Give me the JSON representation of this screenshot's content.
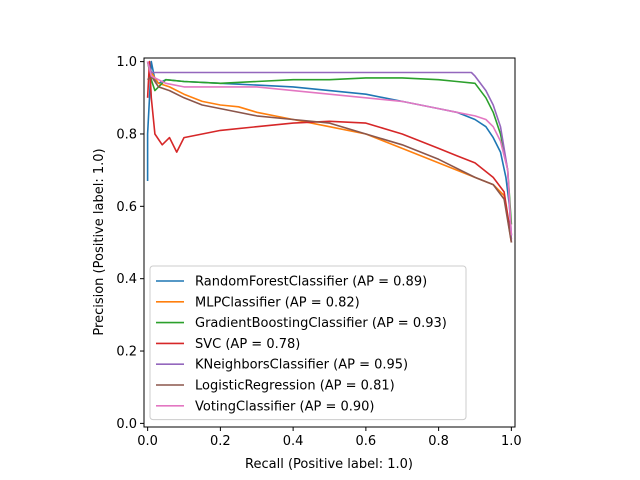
{
  "chart_data": {
    "type": "line",
    "title": "",
    "xlabel": "Recall (Positive label: 1.0)",
    "ylabel": "Precision (Positive label: 1.0)",
    "xlim": [
      -0.01,
      1.01
    ],
    "ylim": [
      -0.01,
      1.01
    ],
    "xticks": [
      "0.0",
      "0.2",
      "0.4",
      "0.6",
      "0.8",
      "1.0"
    ],
    "yticks": [
      "0.0",
      "0.2",
      "0.4",
      "0.6",
      "0.8",
      "1.0"
    ],
    "grid": false,
    "legend_position": "lower-left",
    "series": [
      {
        "name": "RandomForestClassifier (AP = 0.89)",
        "color": "#1f77b4",
        "points": [
          [
            0.0,
            0.67
          ],
          [
            0.0,
            0.8
          ],
          [
            0.005,
            0.9
          ],
          [
            0.01,
            1.0
          ],
          [
            0.02,
            0.95
          ],
          [
            0.03,
            0.94
          ],
          [
            0.05,
            0.95
          ],
          [
            0.1,
            0.945
          ],
          [
            0.2,
            0.94
          ],
          [
            0.3,
            0.935
          ],
          [
            0.4,
            0.93
          ],
          [
            0.5,
            0.92
          ],
          [
            0.6,
            0.91
          ],
          [
            0.7,
            0.89
          ],
          [
            0.8,
            0.87
          ],
          [
            0.85,
            0.86
          ],
          [
            0.9,
            0.84
          ],
          [
            0.93,
            0.82
          ],
          [
            0.95,
            0.79
          ],
          [
            0.97,
            0.75
          ],
          [
            0.985,
            0.68
          ],
          [
            0.995,
            0.6
          ],
          [
            1.0,
            0.52
          ]
        ]
      },
      {
        "name": "MLPClassifier (AP = 0.82)",
        "color": "#ff7f0e",
        "points": [
          [
            0.0,
            1.0
          ],
          [
            0.01,
            0.97
          ],
          [
            0.03,
            0.94
          ],
          [
            0.06,
            0.93
          ],
          [
            0.1,
            0.91
          ],
          [
            0.15,
            0.89
          ],
          [
            0.2,
            0.88
          ],
          [
            0.25,
            0.875
          ],
          [
            0.3,
            0.86
          ],
          [
            0.4,
            0.84
          ],
          [
            0.5,
            0.82
          ],
          [
            0.6,
            0.8
          ],
          [
            0.7,
            0.76
          ],
          [
            0.8,
            0.72
          ],
          [
            0.9,
            0.68
          ],
          [
            0.95,
            0.66
          ],
          [
            0.98,
            0.63
          ],
          [
            1.0,
            0.5
          ]
        ]
      },
      {
        "name": "GradientBoostingClassifier (AP = 0.93)",
        "color": "#2ca02c",
        "points": [
          [
            0.0,
            1.0
          ],
          [
            0.01,
            0.95
          ],
          [
            0.02,
            0.92
          ],
          [
            0.05,
            0.95
          ],
          [
            0.1,
            0.945
          ],
          [
            0.2,
            0.94
          ],
          [
            0.3,
            0.945
          ],
          [
            0.4,
            0.95
          ],
          [
            0.5,
            0.95
          ],
          [
            0.6,
            0.955
          ],
          [
            0.7,
            0.955
          ],
          [
            0.8,
            0.95
          ],
          [
            0.85,
            0.945
          ],
          [
            0.9,
            0.94
          ],
          [
            0.93,
            0.9
          ],
          [
            0.95,
            0.86
          ],
          [
            0.97,
            0.8
          ],
          [
            0.99,
            0.7
          ],
          [
            1.0,
            0.55
          ]
        ]
      },
      {
        "name": "SVC (AP = 0.78)",
        "color": "#d62728",
        "points": [
          [
            0.0,
            0.9
          ],
          [
            0.005,
            1.0
          ],
          [
            0.01,
            0.9
          ],
          [
            0.02,
            0.8
          ],
          [
            0.04,
            0.77
          ],
          [
            0.06,
            0.79
          ],
          [
            0.08,
            0.75
          ],
          [
            0.1,
            0.79
          ],
          [
            0.15,
            0.8
          ],
          [
            0.2,
            0.81
          ],
          [
            0.3,
            0.82
          ],
          [
            0.4,
            0.83
          ],
          [
            0.5,
            0.835
          ],
          [
            0.6,
            0.83
          ],
          [
            0.7,
            0.8
          ],
          [
            0.8,
            0.76
          ],
          [
            0.85,
            0.74
          ],
          [
            0.9,
            0.72
          ],
          [
            0.95,
            0.68
          ],
          [
            0.98,
            0.64
          ],
          [
            1.0,
            0.51
          ]
        ]
      },
      {
        "name": "KNeighborsClassifier (AP = 0.95)",
        "color": "#9467bd",
        "points": [
          [
            0.0,
            1.0
          ],
          [
            0.01,
            0.97
          ],
          [
            0.05,
            0.97
          ],
          [
            0.1,
            0.97
          ],
          [
            0.3,
            0.97
          ],
          [
            0.5,
            0.97
          ],
          [
            0.7,
            0.97
          ],
          [
            0.89,
            0.97
          ],
          [
            0.9,
            0.96
          ],
          [
            0.93,
            0.92
          ],
          [
            0.95,
            0.88
          ],
          [
            0.97,
            0.82
          ],
          [
            0.99,
            0.7
          ],
          [
            1.0,
            0.5
          ]
        ]
      },
      {
        "name": "LogisticRegression (AP = 0.81)",
        "color": "#8c564b",
        "points": [
          [
            0.0,
            0.95
          ],
          [
            0.01,
            0.96
          ],
          [
            0.03,
            0.93
          ],
          [
            0.06,
            0.92
          ],
          [
            0.1,
            0.9
          ],
          [
            0.15,
            0.88
          ],
          [
            0.2,
            0.87
          ],
          [
            0.3,
            0.85
          ],
          [
            0.4,
            0.84
          ],
          [
            0.5,
            0.83
          ],
          [
            0.6,
            0.8
          ],
          [
            0.7,
            0.77
          ],
          [
            0.8,
            0.73
          ],
          [
            0.9,
            0.68
          ],
          [
            0.95,
            0.66
          ],
          [
            0.98,
            0.62
          ],
          [
            1.0,
            0.5
          ]
        ]
      },
      {
        "name": "VotingClassifier (AP = 0.90)",
        "color": "#e377c2",
        "points": [
          [
            0.0,
            1.0
          ],
          [
            0.01,
            0.96
          ],
          [
            0.03,
            0.95
          ],
          [
            0.05,
            0.94
          ],
          [
            0.1,
            0.93
          ],
          [
            0.2,
            0.93
          ],
          [
            0.3,
            0.93
          ],
          [
            0.4,
            0.92
          ],
          [
            0.5,
            0.91
          ],
          [
            0.6,
            0.9
          ],
          [
            0.7,
            0.89
          ],
          [
            0.8,
            0.87
          ],
          [
            0.85,
            0.86
          ],
          [
            0.9,
            0.85
          ],
          [
            0.93,
            0.84
          ],
          [
            0.95,
            0.82
          ],
          [
            0.97,
            0.78
          ],
          [
            0.99,
            0.7
          ],
          [
            1.0,
            0.52
          ]
        ]
      }
    ]
  }
}
